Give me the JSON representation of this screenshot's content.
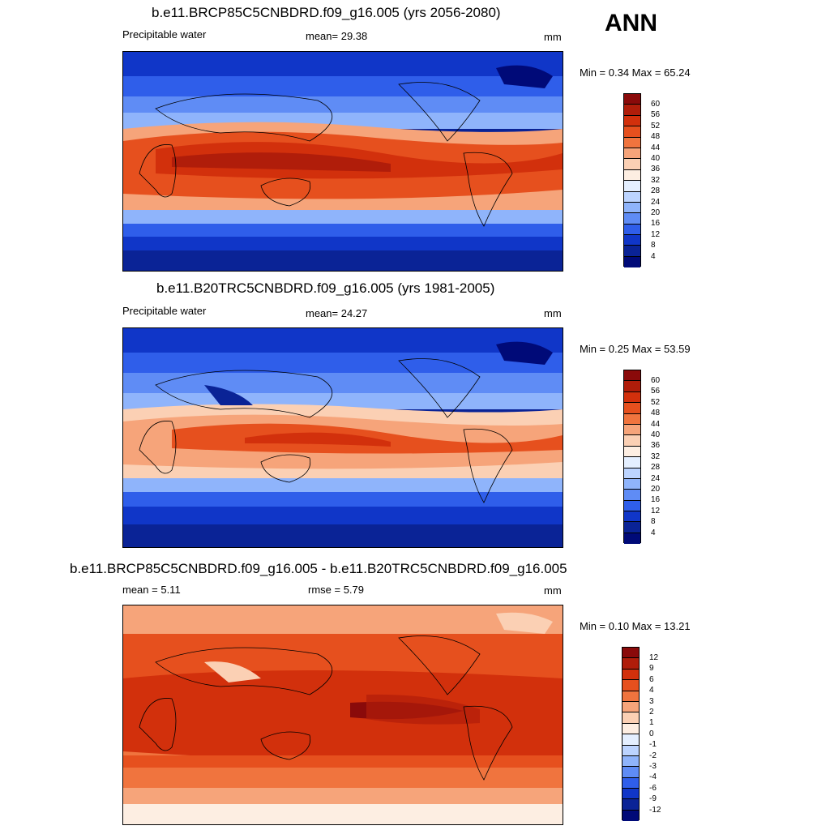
{
  "season": "ANN",
  "panels": [
    {
      "title": "b.e11.BRCP85C5CNBDRD.f09_g16.005 (yrs 2056-2080)",
      "left_label": "Precipitable water",
      "center_label": "mean=  29.38",
      "units": "mm",
      "minmax": "Min =   0.34 Max =  65.24",
      "colorbar_labels": [
        "60",
        "56",
        "52",
        "48",
        "44",
        "40",
        "36",
        "32",
        "28",
        "24",
        "20",
        "16",
        "12",
        "8",
        "4"
      ]
    },
    {
      "title": "b.e11.B20TRC5CNBDRD.f09_g16.005 (yrs 1981-2005)",
      "left_label": "Precipitable water",
      "center_label": "mean=  24.27",
      "units": "mm",
      "minmax": "Min =   0.25 Max =  53.59",
      "colorbar_labels": [
        "60",
        "56",
        "52",
        "48",
        "44",
        "40",
        "36",
        "32",
        "28",
        "24",
        "20",
        "16",
        "12",
        "8",
        "4"
      ]
    },
    {
      "title": "b.e11.BRCP85C5CNBDRD.f09_g16.005 - b.e11.B20TRC5CNBDRD.f09_g16.005",
      "left_label": "mean =   5.11",
      "center_label": "rmse =   5.79",
      "units": "mm",
      "minmax": "Min =   0.10 Max =  13.21",
      "colorbar_labels": [
        "12",
        "9",
        "6",
        "4",
        "3",
        "2",
        "1",
        "0",
        "-1",
        "-2",
        "-3",
        "-4",
        "-6",
        "-9",
        "-12"
      ]
    }
  ],
  "colors": {
    "abs_scale": [
      "#8a0a0a",
      "#b01d0a",
      "#d2300c",
      "#e6501e",
      "#f0743e",
      "#f6a47a",
      "#fbd0b4",
      "#fdeee2",
      "#e4efff",
      "#bcd4ff",
      "#8fb4fb",
      "#5f8cf5",
      "#2f5eea",
      "#1036c8",
      "#0a2396",
      "#000a78"
    ],
    "diff_scale": [
      "#8a0a0a",
      "#b01d0a",
      "#d2300c",
      "#e6501e",
      "#f0743e",
      "#f6a47a",
      "#fbd0b4",
      "#fdeee2",
      "#e4efff",
      "#bcd4ff",
      "#8fb4fb",
      "#5f8cf5",
      "#2f5eea",
      "#1036c8",
      "#0a2396",
      "#000a78"
    ]
  }
}
